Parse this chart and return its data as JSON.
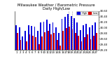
{
  "title": "Milwaukee Weather / Barometric Pressure",
  "subtitle": "Daily High/Low",
  "days": [
    1,
    2,
    3,
    4,
    5,
    6,
    7,
    8,
    9,
    10,
    11,
    12,
    13,
    14,
    15,
    16,
    17,
    18,
    19,
    20,
    21,
    22,
    23,
    24,
    25,
    26,
    27
  ],
  "highs": [
    30.08,
    30.02,
    29.68,
    29.9,
    30.1,
    30.06,
    30.04,
    29.88,
    30.18,
    30.22,
    30.28,
    30.15,
    30.2,
    30.02,
    29.82,
    30.32,
    30.4,
    30.48,
    30.42,
    30.35,
    30.18,
    29.92,
    30.08,
    30.15,
    30.02,
    30.08,
    30.18
  ],
  "lows": [
    29.82,
    29.55,
    29.22,
    29.5,
    29.75,
    29.7,
    29.65,
    29.42,
    29.68,
    29.84,
    29.9,
    29.76,
    29.8,
    29.55,
    29.35,
    29.88,
    30.0,
    30.05,
    29.95,
    29.82,
    29.7,
    29.5,
    29.65,
    29.75,
    29.58,
    29.7,
    29.82
  ],
  "ymin": 29.2,
  "ymax": 30.6,
  "yticks": [
    29.2,
    29.4,
    29.6,
    29.8,
    30.0,
    30.2,
    30.4,
    30.6
  ],
  "color_high": "#0000dd",
  "color_low": "#dd0000",
  "background": "#ffffff",
  "legend_high": "High",
  "legend_low": "Low",
  "bar_width": 0.42,
  "title_fontsize": 3.8,
  "tick_fontsize": 2.8,
  "ylabel_fontsize": 2.8,
  "vline_x": 18.5
}
